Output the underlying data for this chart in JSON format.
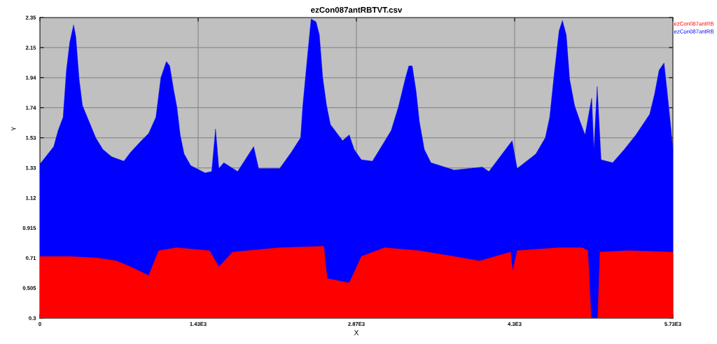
{
  "chart_data": {
    "type": "area",
    "title": "ezCon087antRBTVT.csv",
    "xlabel": "X",
    "ylabel": "Y",
    "xlim": [
      0,
      5730
    ],
    "ylim": [
      0.3,
      2.35
    ],
    "xticks": [
      0,
      {
        "value": 1432.5,
        "label": "1.43E3"
      },
      {
        "value": 2865,
        "label": "2.87E3"
      },
      {
        "value": 4297.5,
        "label": "4.3E3"
      },
      {
        "value": 5730,
        "label": "5.73E3"
      }
    ],
    "yticks": [
      0.3,
      0.505,
      0.71,
      0.915,
      1.12,
      {
        "value": 1.325,
        "label": "1.33"
      },
      1.53,
      {
        "value": 1.735,
        "label": "1.74"
      },
      1.94,
      {
        "value": 2.145,
        "label": "2.15"
      },
      2.35
    ],
    "grid": true,
    "legend": "top right",
    "series": [
      {
        "name": "ezCon087antRB",
        "color": "#ff0000",
        "x": [
          0,
          270,
          525,
          695,
          820,
          985,
          1075,
          1240,
          1535,
          1620,
          1745,
          2170,
          2570,
          2600,
          2800,
          2850,
          2910,
          3120,
          3430,
          3750,
          3980,
          4260,
          4280,
          4320,
          4700,
          4910,
          4960,
          4990,
          5050,
          5070,
          5330,
          5730
        ],
        "values": [
          0.72,
          0.72,
          0.71,
          0.69,
          0.65,
          0.59,
          0.76,
          0.78,
          0.76,
          0.65,
          0.75,
          0.78,
          0.79,
          0.57,
          0.54,
          0.62,
          0.72,
          0.78,
          0.76,
          0.72,
          0.69,
          0.75,
          0.62,
          0.76,
          0.78,
          0.78,
          0.76,
          0.3,
          0.3,
          0.75,
          0.76,
          0.75
        ]
      },
      {
        "name": "ezCon087antRB",
        "color": "#0000ff",
        "x": [
          0,
          125,
          165,
          210,
          240,
          270,
          305,
          325,
          355,
          385,
          445,
          505,
          570,
          650,
          760,
          820,
          905,
          985,
          1050,
          1095,
          1145,
          1175,
          1210,
          1240,
          1270,
          1305,
          1365,
          1495,
          1555,
          1590,
          1620,
          1665,
          1790,
          1935,
          1980,
          2170,
          2275,
          2360,
          2380,
          2420,
          2455,
          2500,
          2530,
          2560,
          2595,
          2630,
          2740,
          2800,
          2845,
          2910,
          3010,
          3100,
          3180,
          3245,
          3310,
          3340,
          3370,
          3405,
          3435,
          3480,
          3540,
          3750,
          4005,
          4065,
          4275,
          4320,
          4490,
          4575,
          4615,
          4655,
          4700,
          4730,
          4765,
          4795,
          4840,
          4890,
          4935,
          4995,
          5015,
          5045,
          5080,
          5185,
          5290,
          5395,
          5520,
          5565,
          5605,
          5650,
          5680,
          5710,
          5730
        ],
        "values": [
          1.35,
          1.47,
          1.58,
          1.67,
          1.99,
          2.18,
          2.3,
          2.22,
          1.93,
          1.75,
          1.64,
          1.53,
          1.45,
          1.4,
          1.37,
          1.43,
          1.5,
          1.56,
          1.67,
          1.94,
          2.05,
          2.02,
          1.86,
          1.74,
          1.55,
          1.42,
          1.34,
          1.29,
          1.3,
          1.59,
          1.32,
          1.36,
          1.3,
          1.47,
          1.32,
          1.32,
          1.43,
          1.53,
          1.75,
          2.07,
          2.34,
          2.32,
          2.23,
          1.94,
          1.75,
          1.62,
          1.51,
          1.55,
          1.45,
          1.38,
          1.37,
          1.48,
          1.58,
          1.74,
          1.94,
          2.02,
          2.02,
          1.85,
          1.64,
          1.45,
          1.36,
          1.31,
          1.33,
          1.3,
          1.51,
          1.32,
          1.42,
          1.53,
          1.67,
          1.96,
          2.26,
          2.33,
          2.23,
          1.93,
          1.75,
          1.64,
          1.55,
          1.8,
          1.45,
          1.88,
          1.38,
          1.36,
          1.45,
          1.55,
          1.69,
          1.83,
          1.99,
          2.04,
          1.83,
          1.61,
          1.45
        ]
      }
    ]
  }
}
